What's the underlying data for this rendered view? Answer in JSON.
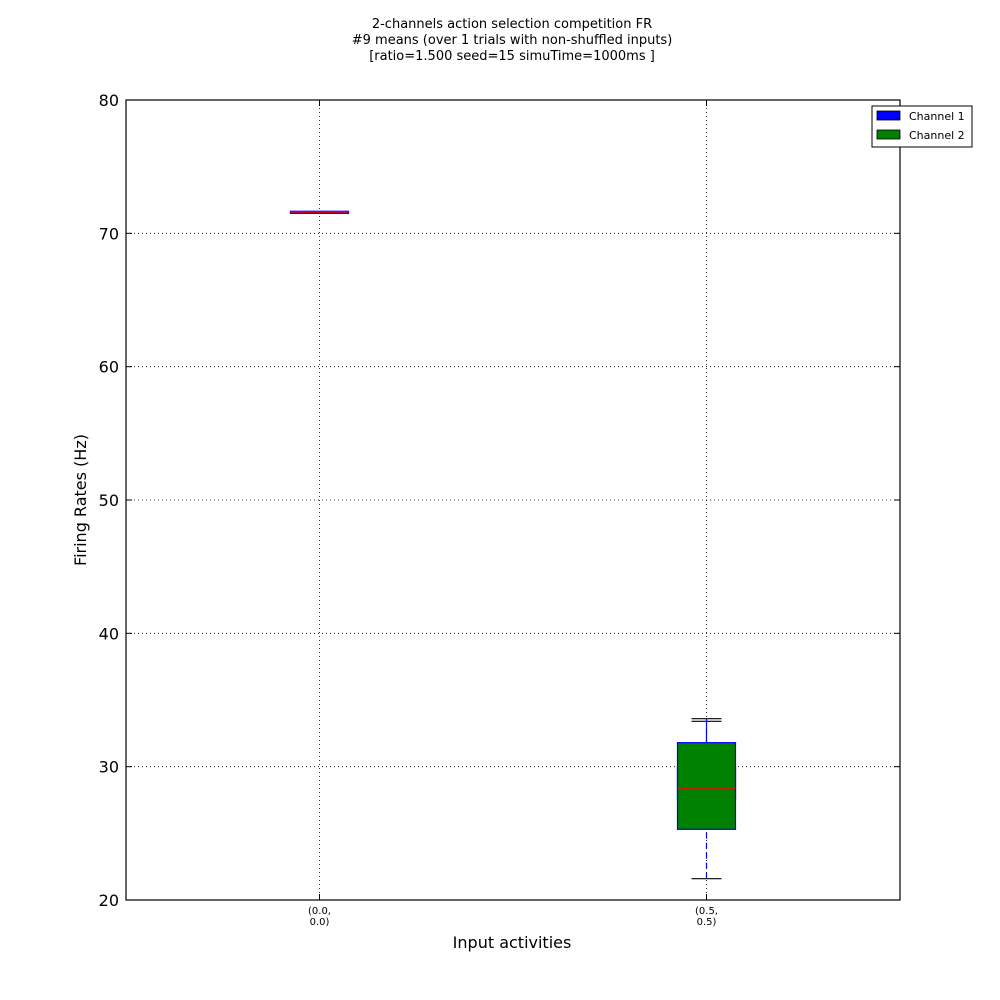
{
  "chart_data": {
    "type": "box",
    "title_lines": [
      "2-channels action selection competition FR",
      "#9 means (over 1 trials with non-shuffled inputs)",
      "[ratio=1.500 seed=15 simuTime=1000ms ]"
    ],
    "xlabel": "Input activities",
    "ylabel": "Firing Rates (Hz)",
    "ylim": [
      20,
      80
    ],
    "yticks": [
      "20",
      "30",
      "40",
      "50",
      "60",
      "70",
      "80"
    ],
    "categories": [
      {
        "label_lines": [
          "(0.0,",
          "0.0)"
        ],
        "x": 0.25
      },
      {
        "label_lines": [
          "(0.5,",
          "0.5)"
        ],
        "x": 0.75
      }
    ],
    "xlim": [
      0,
      1
    ],
    "grid": true,
    "legend_position": "outside-top-right",
    "series": [
      {
        "name": "Channel 1",
        "color": "#0000ff",
        "boxes": [
          {
            "category": 0,
            "whislo": 71.55,
            "q1": 71.55,
            "median": 71.55,
            "q3": 71.55,
            "whishi": 71.55
          },
          {
            "category": 1,
            "whislo": 25.7,
            "q1": 27.5,
            "median": 28.3,
            "q3": 30.0,
            "whishi": 33.4
          }
        ]
      },
      {
        "name": "Channel 2",
        "color": "#008000",
        "boxes": [
          {
            "category": 0,
            "whislo": 71.6,
            "q1": 71.6,
            "median": 71.6,
            "q3": 71.6,
            "whishi": 71.6
          },
          {
            "category": 1,
            "whislo": 21.6,
            "q1": 25.3,
            "median": 28.4,
            "q3": 31.8,
            "whishi": 33.6
          }
        ]
      }
    ],
    "median_color": "#ff0000"
  }
}
